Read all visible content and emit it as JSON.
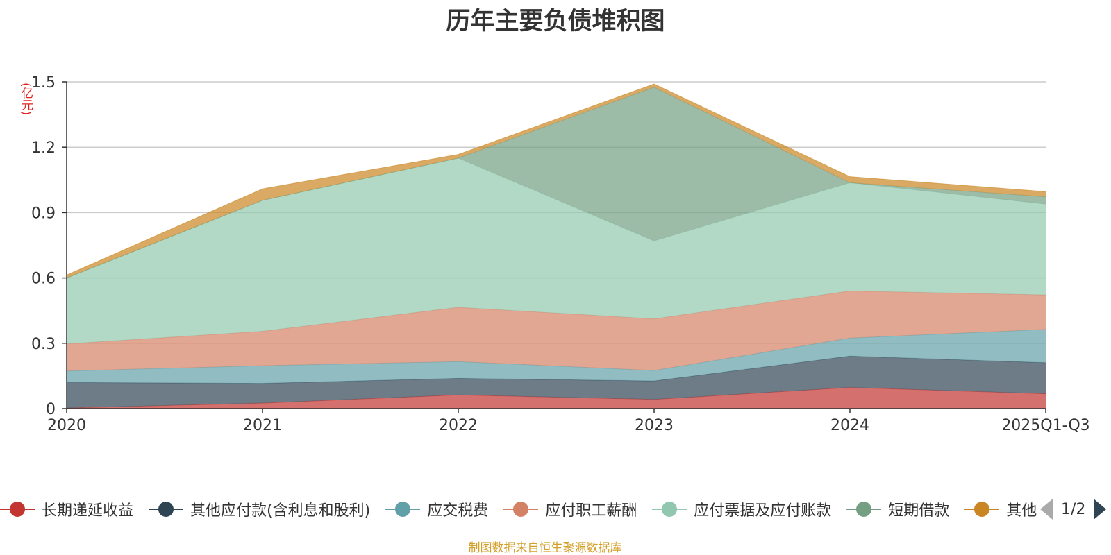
{
  "chart_data": {
    "type": "area",
    "stacked": true,
    "title": "历年主要负债堆积图",
    "ylabel": "(亿元)",
    "xlabel": "",
    "ylim": [
      0,
      1.5
    ],
    "yticks": [
      "0",
      "0.3",
      "0.6",
      "0.9",
      "1.2",
      "1.5"
    ],
    "grid": true,
    "legend_position": "bottom",
    "categories": [
      "2020",
      "2021",
      "2022",
      "2023",
      "2024",
      "2025Q1-Q3"
    ],
    "series": [
      {
        "name": "长期递延收益",
        "color": "#c23531",
        "values": [
          0.003,
          0.025,
          0.063,
          0.042,
          0.097,
          0.068
        ]
      },
      {
        "name": "其他应付款(含利息和股利)",
        "color": "#2f4554",
        "values": [
          0.117,
          0.091,
          0.076,
          0.085,
          0.144,
          0.143
        ]
      },
      {
        "name": "应交税费",
        "color": "#61a0a8",
        "values": [
          0.053,
          0.081,
          0.077,
          0.048,
          0.083,
          0.153
        ]
      },
      {
        "name": "应付职工薪酬",
        "color": "#d48265",
        "values": [
          0.124,
          0.158,
          0.249,
          0.237,
          0.216,
          0.158
        ]
      },
      {
        "name": "应付票据及应付账款",
        "color": "#91c7ae",
        "values": [
          0.303,
          0.601,
          0.685,
          0.358,
          0.497,
          0.417
        ]
      },
      {
        "name": "短期借款",
        "color": "#749f83",
        "values": [
          0.0,
          0.0,
          0.0,
          0.705,
          0.0,
          0.033
        ]
      },
      {
        "name": "其他",
        "color": "#ca8622",
        "values": [
          0.013,
          0.053,
          0.017,
          0.015,
          0.028,
          0.024
        ]
      }
    ],
    "pager": "1/2",
    "source": "制图数据来自恒生聚源数据库"
  }
}
